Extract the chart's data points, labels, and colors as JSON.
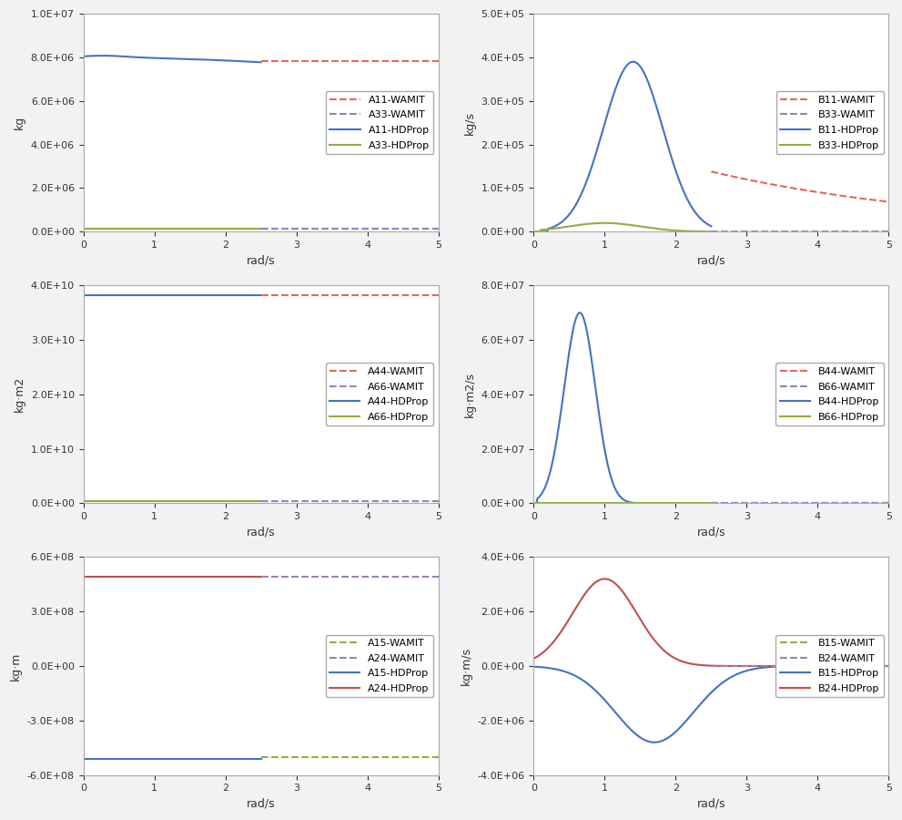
{
  "colors": {
    "red_dashed": "#e8645a",
    "purple_dashed": "#9e7fb8",
    "blue_solid": "#4472c4",
    "green_solid": "#8faf3e",
    "red_solid": "#c0504d",
    "olive_dashed": "#8faf3e"
  },
  "bg_color": "#f2f2f2",
  "plot_bg": "#ffffff",
  "grid_color": "#ffffff",
  "subplot_configs": [
    {
      "ylabel": "kg",
      "xlabel": "rad/s",
      "ylim": [
        0,
        10000000.0
      ],
      "yticks": [
        0,
        2000000.0,
        4000000.0,
        6000000.0,
        8000000.0,
        10000000.0
      ],
      "xlim": [
        0,
        5
      ],
      "xticks": [
        0,
        1,
        2,
        3,
        4,
        5
      ],
      "legend_labels": [
        "A11-WAMIT",
        "A33-WAMIT",
        "A11-HDProp",
        "A33-HDProp"
      ],
      "legend_styles": [
        "red_dashed",
        "purple_dashed",
        "blue_solid",
        "green_solid"
      ]
    },
    {
      "ylabel": "kg/s",
      "xlabel": "rad/s",
      "ylim": [
        0,
        500000.0
      ],
      "yticks": [
        0,
        100000.0,
        200000.0,
        300000.0,
        400000.0,
        500000.0
      ],
      "xlim": [
        0,
        5
      ],
      "xticks": [
        0,
        1,
        2,
        3,
        4,
        5
      ],
      "legend_labels": [
        "B11-WAMIT",
        "B33-WAMIT",
        "B11-HDProp",
        "B33-HDProp"
      ],
      "legend_styles": [
        "red_dashed",
        "purple_dashed",
        "blue_solid",
        "green_solid"
      ]
    },
    {
      "ylabel": "kg·m2",
      "xlabel": "rad/s",
      "ylim": [
        0,
        40000000000.0
      ],
      "yticks": [
        0,
        10000000000.0,
        20000000000.0,
        30000000000.0,
        40000000000.0
      ],
      "xlim": [
        0,
        5
      ],
      "xticks": [
        0,
        1,
        2,
        3,
        4,
        5
      ],
      "legend_labels": [
        "A44-WAMIT",
        "A66-WAMIT",
        "A44-HDProp",
        "A66-HDProp"
      ],
      "legend_styles": [
        "red_dashed",
        "purple_dashed",
        "blue_solid",
        "green_solid"
      ]
    },
    {
      "ylabel": "kg·m2/s",
      "xlabel": "rad/s",
      "ylim": [
        0,
        80000000.0
      ],
      "yticks": [
        0,
        20000000.0,
        40000000.0,
        60000000.0,
        80000000.0
      ],
      "xlim": [
        0,
        5
      ],
      "xticks": [
        0,
        1,
        2,
        3,
        4,
        5
      ],
      "legend_labels": [
        "B44-WAMIT",
        "B66-WAMIT",
        "B44-HDProp",
        "B66-HDProp"
      ],
      "legend_styles": [
        "red_dashed",
        "purple_dashed",
        "blue_solid",
        "green_solid"
      ]
    },
    {
      "ylabel": "kg·m",
      "xlabel": "rad/s",
      "ylim": [
        -600000000.0,
        600000000.0
      ],
      "yticks": [
        -600000000.0,
        -300000000.0,
        0,
        300000000.0,
        600000000.0
      ],
      "xlim": [
        0,
        5
      ],
      "xticks": [
        0,
        1,
        2,
        3,
        4,
        5
      ],
      "legend_labels": [
        "A15-WAMIT",
        "A24-WAMIT",
        "A15-HDProp",
        "A24-HDProp"
      ],
      "legend_styles": [
        "olive_dashed",
        "purple_dashed",
        "blue_solid",
        "red_solid"
      ]
    },
    {
      "ylabel": "kg·m/s",
      "xlabel": "rad/s",
      "ylim": [
        -4000000.0,
        4000000.0
      ],
      "yticks": [
        -4000000.0,
        -2000000.0,
        0,
        2000000.0,
        4000000.0
      ],
      "xlim": [
        0,
        5
      ],
      "xticks": [
        0,
        1,
        2,
        3,
        4,
        5
      ],
      "legend_labels": [
        "B15-WAMIT",
        "B24-WAMIT",
        "B15-HDProp",
        "B24-HDProp"
      ],
      "legend_styles": [
        "olive_dashed",
        "purple_dashed",
        "blue_solid",
        "red_solid"
      ]
    }
  ]
}
